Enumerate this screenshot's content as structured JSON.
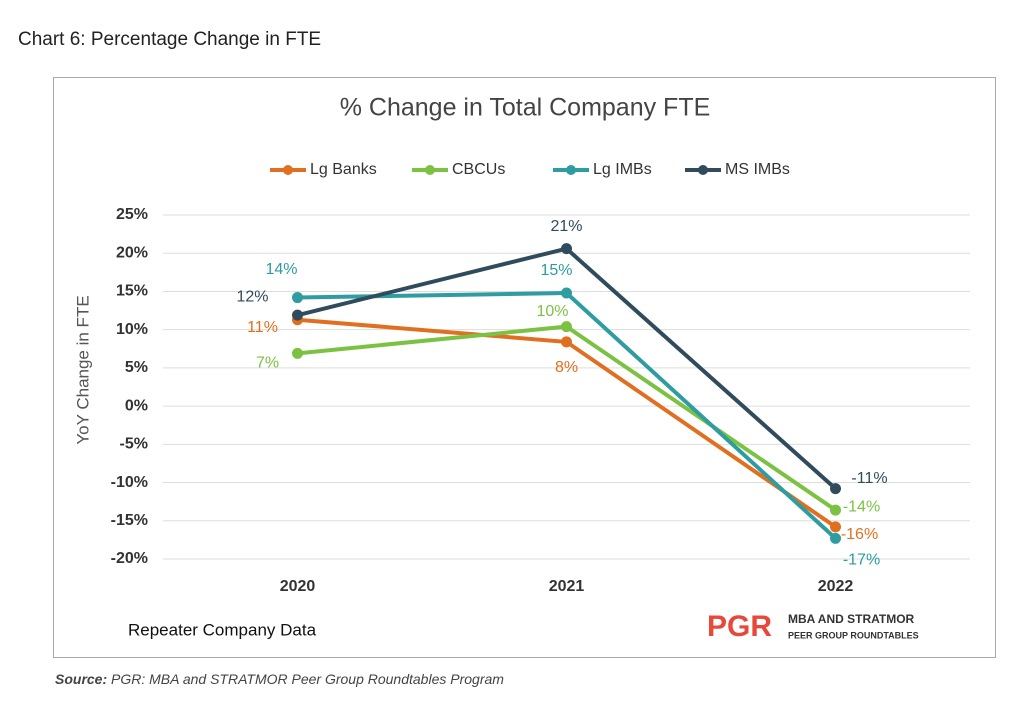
{
  "heading": "Chart 6: Percentage Change in FTE",
  "chart_data": {
    "type": "line",
    "title": "% Change in Total Company FTE",
    "y_label": "YoY Change in FTE",
    "categories": [
      "2020",
      "2021",
      "2022"
    ],
    "series": [
      {
        "name": "Lg Banks",
        "color": "#e07020",
        "values": [
          11.3,
          8.4,
          -15.8
        ],
        "value_labels": [
          "11%",
          "8%",
          "-16%"
        ]
      },
      {
        "name": "CBCUs",
        "color": "#7cc242",
        "values": [
          6.9,
          10.4,
          -13.6
        ],
        "value_labels": [
          "7%",
          "10%",
          "-14%"
        ]
      },
      {
        "name": "Lg IMBs",
        "color": "#2e9ca0",
        "values": [
          14.2,
          14.8,
          -17.3
        ],
        "value_labels": [
          "14%",
          "15%",
          "-17%"
        ]
      },
      {
        "name": "MS IMBs",
        "color": "#2f4b5c",
        "values": [
          11.9,
          20.6,
          -10.8
        ],
        "value_labels": [
          "12%",
          "21%",
          "-11%"
        ]
      }
    ],
    "ylim": [
      -20,
      25
    ],
    "yticks": [
      {
        "value": -20,
        "label": "-20%"
      },
      {
        "value": -15,
        "label": "-15%"
      },
      {
        "value": -10,
        "label": "-10%"
      },
      {
        "value": -5,
        "label": "-5%"
      },
      {
        "value": 0,
        "label": "0%"
      },
      {
        "value": 5,
        "label": "5%"
      },
      {
        "value": 10,
        "label": "10%"
      },
      {
        "value": 15,
        "label": "15%"
      },
      {
        "value": 20,
        "label": "20%"
      },
      {
        "value": 25,
        "label": "25%"
      }
    ],
    "grid": true,
    "legend": "top",
    "footnote": "Repeater Company Data"
  },
  "logo": {
    "mark": "PGR",
    "line1": "MBA AND STRATMOR",
    "line2": "PEER GROUP ROUNDTABLES"
  },
  "source": {
    "label": "Source:",
    "text": "PGR: MBA and STRATMOR Peer Group Roundtables Program"
  }
}
